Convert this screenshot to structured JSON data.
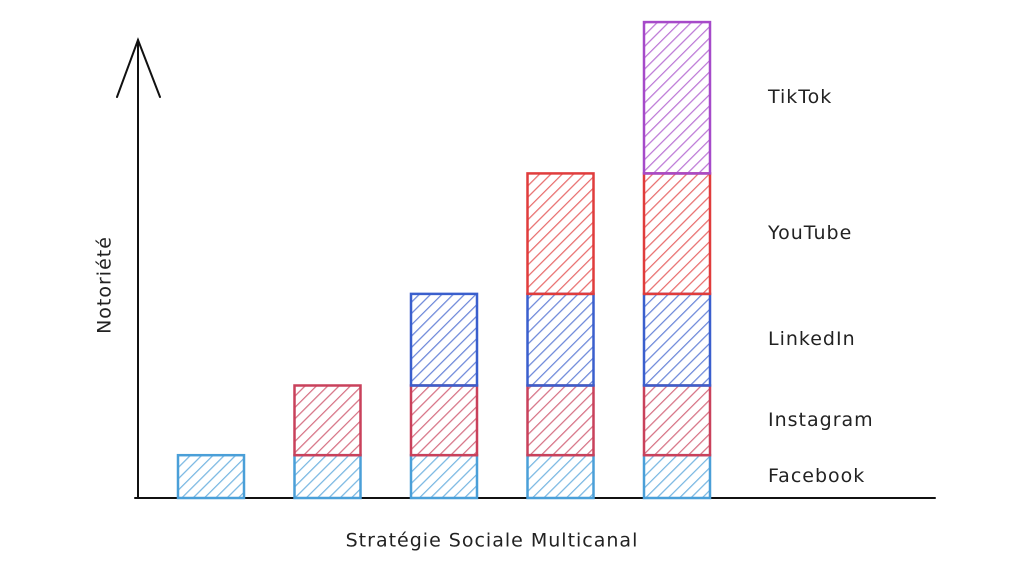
{
  "chart_data": {
    "type": "stacked_bar",
    "y_label": "Notoriété",
    "x_label": "Stratégie Sociale Multicanal",
    "categories": [
      null,
      null,
      null,
      null,
      null
    ],
    "ylim": [
      0,
      460
    ],
    "series": [
      {
        "name": "Facebook",
        "color": "#4a9fd8",
        "values": [
          43,
          43,
          43,
          43,
          43
        ]
      },
      {
        "name": "Instagram",
        "color": "#c9415b",
        "values": [
          null,
          70,
          70,
          70,
          70
        ]
      },
      {
        "name": "LinkedIn",
        "color": "#3a5fcd",
        "values": [
          null,
          null,
          92,
          92,
          92
        ]
      },
      {
        "name": "YouTube",
        "color": "#e03c3c",
        "values": [
          null,
          null,
          null,
          121,
          121
        ]
      },
      {
        "name": "TikTok",
        "color": "#a64ac9",
        "values": [
          null,
          null,
          null,
          null,
          152
        ]
      }
    ]
  }
}
